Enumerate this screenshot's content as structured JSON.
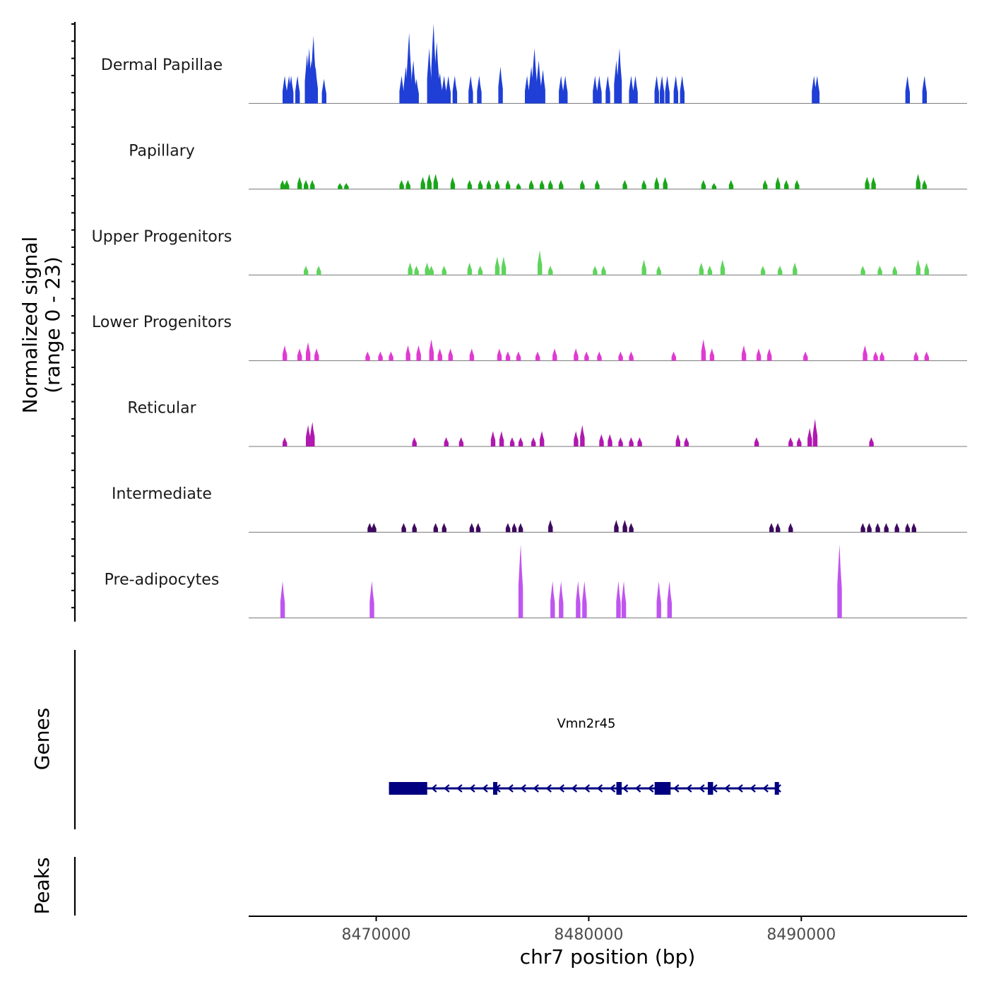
{
  "chart_data": {
    "type": "area",
    "title": "",
    "ylabel_line1": "Normalized signal",
    "ylabel_line2": "(range 0 - 23)",
    "yrange": [
      0,
      23
    ],
    "xlabel": "chr7 position (bp)",
    "xlim": [
      8464000,
      8497800
    ],
    "xticks": [
      8470000,
      8480000,
      8490000
    ],
    "xtick_labels": [
      "8470000",
      "8480000",
      "8490000"
    ],
    "tracks": [
      {
        "name": "Dermal Papillae",
        "color": "#1f3fd6",
        "peaks": [
          [
            8465700,
            9
          ],
          [
            8465900,
            9
          ],
          [
            8466000,
            9
          ],
          [
            8466300,
            9
          ],
          [
            8466750,
            16
          ],
          [
            8466850,
            18
          ],
          [
            8466950,
            14
          ],
          [
            8467050,
            22
          ],
          [
            8467150,
            12
          ],
          [
            8467550,
            8
          ],
          [
            8471200,
            9
          ],
          [
            8471400,
            12
          ],
          [
            8471550,
            23
          ],
          [
            8471750,
            14
          ],
          [
            8471900,
            8
          ],
          [
            8472500,
            18
          ],
          [
            8472700,
            26
          ],
          [
            8472850,
            20
          ],
          [
            8473000,
            10
          ],
          [
            8473200,
            9
          ],
          [
            8473400,
            9
          ],
          [
            8473700,
            9
          ],
          [
            8474450,
            9
          ],
          [
            8474850,
            9
          ],
          [
            8475850,
            12
          ],
          [
            8477100,
            9
          ],
          [
            8477300,
            12
          ],
          [
            8477450,
            18
          ],
          [
            8477650,
            14
          ],
          [
            8477850,
            11
          ],
          [
            8478700,
            9
          ],
          [
            8478900,
            9
          ],
          [
            8480300,
            9
          ],
          [
            8480500,
            9
          ],
          [
            8480900,
            9
          ],
          [
            8481300,
            14
          ],
          [
            8481450,
            18
          ],
          [
            8482000,
            9
          ],
          [
            8482200,
            9
          ],
          [
            8483200,
            9
          ],
          [
            8483450,
            9
          ],
          [
            8483700,
            9
          ],
          [
            8484100,
            9
          ],
          [
            8484400,
            9
          ],
          [
            8490600,
            9
          ],
          [
            8490750,
            9
          ],
          [
            8495000,
            9
          ],
          [
            8495800,
            9
          ]
        ]
      },
      {
        "name": "Papillary",
        "color": "#19a61a",
        "peaks": [
          [
            8465600,
            3
          ],
          [
            8465800,
            3
          ],
          [
            8466400,
            4
          ],
          [
            8466700,
            3
          ],
          [
            8467000,
            3
          ],
          [
            8468300,
            2
          ],
          [
            8468600,
            2
          ],
          [
            8471200,
            3
          ],
          [
            8471500,
            3
          ],
          [
            8472200,
            4
          ],
          [
            8472500,
            5
          ],
          [
            8472800,
            5
          ],
          [
            8473600,
            4
          ],
          [
            8474400,
            3
          ],
          [
            8474900,
            3
          ],
          [
            8475300,
            3
          ],
          [
            8475700,
            3
          ],
          [
            8476200,
            3
          ],
          [
            8476700,
            2
          ],
          [
            8477300,
            3
          ],
          [
            8477800,
            3
          ],
          [
            8478200,
            3
          ],
          [
            8478700,
            3
          ],
          [
            8479700,
            3
          ],
          [
            8480400,
            3
          ],
          [
            8481700,
            3
          ],
          [
            8482600,
            3
          ],
          [
            8483200,
            4
          ],
          [
            8483600,
            4
          ],
          [
            8485400,
            3
          ],
          [
            8485900,
            2
          ],
          [
            8486700,
            3
          ],
          [
            8488300,
            3
          ],
          [
            8488900,
            4
          ],
          [
            8489300,
            3
          ],
          [
            8489800,
            3
          ],
          [
            8493100,
            4
          ],
          [
            8493400,
            4
          ],
          [
            8495500,
            5
          ],
          [
            8495800,
            3
          ]
        ]
      },
      {
        "name": "Upper Progenitors",
        "color": "#5ed45c",
        "peaks": [
          [
            8466700,
            3
          ],
          [
            8467300,
            3
          ],
          [
            8471600,
            4
          ],
          [
            8471900,
            3
          ],
          [
            8472400,
            4
          ],
          [
            8472600,
            3
          ],
          [
            8473200,
            3
          ],
          [
            8474400,
            4
          ],
          [
            8474900,
            3
          ],
          [
            8475700,
            6
          ],
          [
            8476000,
            6
          ],
          [
            8477700,
            8
          ],
          [
            8478200,
            3
          ],
          [
            8480300,
            3
          ],
          [
            8480700,
            3
          ],
          [
            8482600,
            5
          ],
          [
            8483300,
            3
          ],
          [
            8485300,
            4
          ],
          [
            8485700,
            3
          ],
          [
            8486300,
            5
          ],
          [
            8488200,
            3
          ],
          [
            8489000,
            3
          ],
          [
            8489700,
            4
          ],
          [
            8492900,
            3
          ],
          [
            8493700,
            3
          ],
          [
            8494400,
            3
          ],
          [
            8495500,
            5
          ],
          [
            8495900,
            4
          ]
        ]
      },
      {
        "name": "Lower Progenitors",
        "color": "#e03ad2",
        "peaks": [
          [
            8465700,
            5
          ],
          [
            8466400,
            4
          ],
          [
            8466800,
            6
          ],
          [
            8467200,
            4
          ],
          [
            8469600,
            3
          ],
          [
            8470200,
            3
          ],
          [
            8470700,
            3
          ],
          [
            8471500,
            5
          ],
          [
            8472000,
            5
          ],
          [
            8472600,
            7
          ],
          [
            8473000,
            4
          ],
          [
            8473500,
            4
          ],
          [
            8474500,
            4
          ],
          [
            8475800,
            4
          ],
          [
            8476200,
            3
          ],
          [
            8476700,
            3
          ],
          [
            8477600,
            3
          ],
          [
            8478400,
            4
          ],
          [
            8479400,
            4
          ],
          [
            8479900,
            3
          ],
          [
            8480500,
            3
          ],
          [
            8481500,
            3
          ],
          [
            8482000,
            3
          ],
          [
            8484000,
            3
          ],
          [
            8485400,
            7
          ],
          [
            8485800,
            4
          ],
          [
            8487300,
            5
          ],
          [
            8488000,
            4
          ],
          [
            8488500,
            4
          ],
          [
            8490200,
            3
          ],
          [
            8493000,
            5
          ],
          [
            8493500,
            3
          ],
          [
            8493800,
            3
          ],
          [
            8495400,
            3
          ],
          [
            8495900,
            3
          ]
        ]
      },
      {
        "name": "Reticular",
        "color": "#b018b0",
        "peaks": [
          [
            8465700,
            3
          ],
          [
            8466800,
            7
          ],
          [
            8467000,
            8
          ],
          [
            8471800,
            3
          ],
          [
            8473300,
            3
          ],
          [
            8474000,
            3
          ],
          [
            8475500,
            5
          ],
          [
            8475900,
            5
          ],
          [
            8476400,
            3
          ],
          [
            8476800,
            3
          ],
          [
            8477400,
            3
          ],
          [
            8477800,
            5
          ],
          [
            8479400,
            5
          ],
          [
            8479700,
            7
          ],
          [
            8480600,
            4
          ],
          [
            8481000,
            4
          ],
          [
            8481500,
            3
          ],
          [
            8482000,
            3
          ],
          [
            8482400,
            3
          ],
          [
            8484200,
            4
          ],
          [
            8484600,
            3
          ],
          [
            8487900,
            3
          ],
          [
            8489500,
            3
          ],
          [
            8489900,
            3
          ],
          [
            8490400,
            6
          ],
          [
            8490650,
            9
          ],
          [
            8493300,
            3
          ]
        ]
      },
      {
        "name": "Intermediate",
        "color": "#3d0a5e",
        "peaks": [
          [
            8469700,
            3
          ],
          [
            8469900,
            3
          ],
          [
            8471300,
            3
          ],
          [
            8471800,
            3
          ],
          [
            8472800,
            3
          ],
          [
            8473200,
            3
          ],
          [
            8474500,
            3
          ],
          [
            8474800,
            3
          ],
          [
            8476200,
            3
          ],
          [
            8476500,
            3
          ],
          [
            8476800,
            3
          ],
          [
            8478200,
            4
          ],
          [
            8481300,
            4
          ],
          [
            8481700,
            4
          ],
          [
            8482000,
            3
          ],
          [
            8488600,
            3
          ],
          [
            8488900,
            3
          ],
          [
            8489500,
            3
          ],
          [
            8492900,
            3
          ],
          [
            8493200,
            3
          ],
          [
            8493600,
            3
          ],
          [
            8494000,
            3
          ],
          [
            8494500,
            3
          ],
          [
            8495000,
            3
          ],
          [
            8495300,
            3
          ]
        ]
      },
      {
        "name": "Pre-adipocytes",
        "color": "#bf55f0",
        "peaks": [
          [
            8465600,
            12
          ],
          [
            8469800,
            12
          ],
          [
            8476800,
            24
          ],
          [
            8478300,
            12
          ],
          [
            8478700,
            12
          ],
          [
            8479500,
            12
          ],
          [
            8479800,
            12
          ],
          [
            8481400,
            12
          ],
          [
            8481650,
            12
          ],
          [
            8483300,
            12
          ],
          [
            8483800,
            12
          ],
          [
            8491800,
            24
          ]
        ]
      }
    ],
    "genes_label": "Genes",
    "peaks_label": "Peaks",
    "gene": {
      "name": "Vmn2r45",
      "color": "#000080",
      "strand": "-",
      "start": 8470600,
      "end": 8488950,
      "exons": [
        [
          8470600,
          8472400
        ],
        [
          8475500,
          8475600
        ],
        [
          8481300,
          8481550
        ],
        [
          8483100,
          8483850
        ],
        [
          8485600,
          8485850
        ],
        [
          8488750,
          8488950
        ]
      ]
    }
  }
}
